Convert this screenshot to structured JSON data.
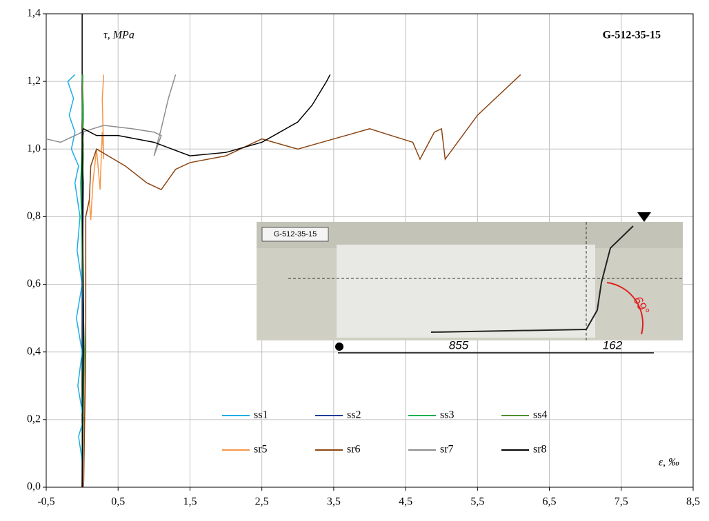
{
  "chart_data": {
    "type": "line",
    "title": "G-512-35-15",
    "y_label": "τ, MPa",
    "x_label": "ε, ‰",
    "xlim": [
      -0.5,
      8.5
    ],
    "ylim": [
      0,
      1.4
    ],
    "xticks": [
      {
        "value": -0.5,
        "label": "-0,5"
      },
      {
        "value": 0.5,
        "label": "0,5"
      },
      {
        "value": 1.5,
        "label": "1,5"
      },
      {
        "value": 2.5,
        "label": "2,5"
      },
      {
        "value": 3.5,
        "label": "3,5"
      },
      {
        "value": 4.5,
        "label": "4,5"
      },
      {
        "value": 5.5,
        "label": "5,5"
      },
      {
        "value": 6.5,
        "label": "6,5"
      },
      {
        "value": 7.5,
        "label": "7,5"
      },
      {
        "value": 8.5,
        "label": "8,5"
      }
    ],
    "yticks": [
      {
        "value": 0,
        "label": "0,0"
      },
      {
        "value": 0.2,
        "label": "0,2"
      },
      {
        "value": 0.4,
        "label": "0,4"
      },
      {
        "value": 0.6,
        "label": "0,6"
      },
      {
        "value": 0.8,
        "label": "0,8"
      },
      {
        "value": 1.0,
        "label": "1,0"
      },
      {
        "value": 1.2,
        "label": "1,2"
      },
      {
        "value": 1.4,
        "label": "1,4"
      }
    ],
    "grid": true,
    "legend": "lower center",
    "series": [
      {
        "name": "ss1",
        "color": "#1aaee8",
        "x": [
          0,
          -0.05,
          0.02,
          -0.06,
          0,
          -0.08,
          0,
          -0.07,
          -0.03,
          -0.1,
          -0.05,
          -0.15,
          -0.1,
          -0.18,
          -0.12,
          -0.2,
          -0.1
        ],
        "values": [
          0.08,
          0.15,
          0.2,
          0.3,
          0.4,
          0.5,
          0.6,
          0.7,
          0.8,
          0.9,
          0.95,
          1.0,
          1.05,
          1.1,
          1.15,
          1.2,
          1.22
        ]
      },
      {
        "name": "ss2",
        "color": "#1f3d99",
        "x": [
          0,
          0.01,
          0,
          0.02,
          0,
          0.02
        ],
        "values": [
          0,
          0.3,
          0.6,
          0.9,
          1.0,
          1.05
        ]
      },
      {
        "name": "ss3",
        "color": "#00b050",
        "x": [
          0,
          0.03,
          0,
          -0.02,
          0,
          0.02,
          0
        ],
        "values": [
          0.05,
          0.4,
          0.7,
          0.9,
          1.0,
          1.1,
          1.22
        ]
      },
      {
        "name": "ss4",
        "color": "#4e8f2e",
        "x": [
          0,
          0.02,
          0,
          0.02,
          0,
          0.01
        ],
        "values": [
          0.1,
          0.5,
          0.8,
          1.0,
          1.1,
          1.22
        ]
      },
      {
        "name": "sr5",
        "color": "#f79646",
        "x": [
          0.02,
          0.05,
          0.05,
          0.1,
          0.12,
          0.15,
          0.2,
          0.25,
          0.27,
          0.28,
          0.3,
          0.28,
          0.3
        ],
        "values": [
          0,
          0.5,
          0.8,
          0.85,
          0.79,
          0.9,
          1.0,
          0.88,
          1.0,
          1.05,
          0.97,
          1.15,
          1.22
        ]
      },
      {
        "name": "sr6",
        "color": "#8b4513",
        "x": [
          0.02,
          0.05,
          0.05,
          0.1,
          0.12,
          0.2,
          0.6,
          0.9,
          1.1,
          1.3,
          1.5,
          2.0,
          2.5,
          3.0,
          3.5,
          4.0,
          4.3,
          4.6,
          4.7,
          4.9,
          5.0,
          5.05,
          5.5,
          6.0,
          6.1
        ],
        "values": [
          0,
          0.4,
          0.8,
          0.85,
          0.95,
          1.0,
          0.95,
          0.9,
          0.88,
          0.94,
          0.96,
          0.98,
          1.03,
          1.0,
          1.03,
          1.06,
          1.04,
          1.02,
          0.97,
          1.05,
          1.06,
          0.97,
          1.1,
          1.2,
          1.22
        ]
      },
      {
        "name": "sr7",
        "color": "#8c8c8c",
        "x": [
          -0.5,
          -0.3,
          0,
          0.3,
          0.7,
          1.0,
          1.1,
          1.0,
          1.1,
          1.2,
          1.3
        ],
        "values": [
          1.03,
          1.02,
          1.05,
          1.07,
          1.06,
          1.05,
          1.04,
          0.98,
          1.06,
          1.15,
          1.22
        ]
      },
      {
        "name": "sr8",
        "color": "#000000",
        "x": [
          0,
          0.02,
          0,
          0,
          0.02,
          0.2,
          0.5,
          1.0,
          1.5,
          2.0,
          2.5,
          3.0,
          3.2,
          3.4,
          3.45
        ],
        "values": [
          0,
          0.5,
          0.9,
          1.05,
          1.06,
          1.04,
          1.04,
          1.02,
          0.98,
          0.99,
          1.02,
          1.08,
          1.13,
          1.2,
          1.22
        ]
      }
    ],
    "inset": {
      "label": "G-512-35-15",
      "dimensions": [
        "855",
        "162"
      ],
      "angle": "69°"
    }
  }
}
